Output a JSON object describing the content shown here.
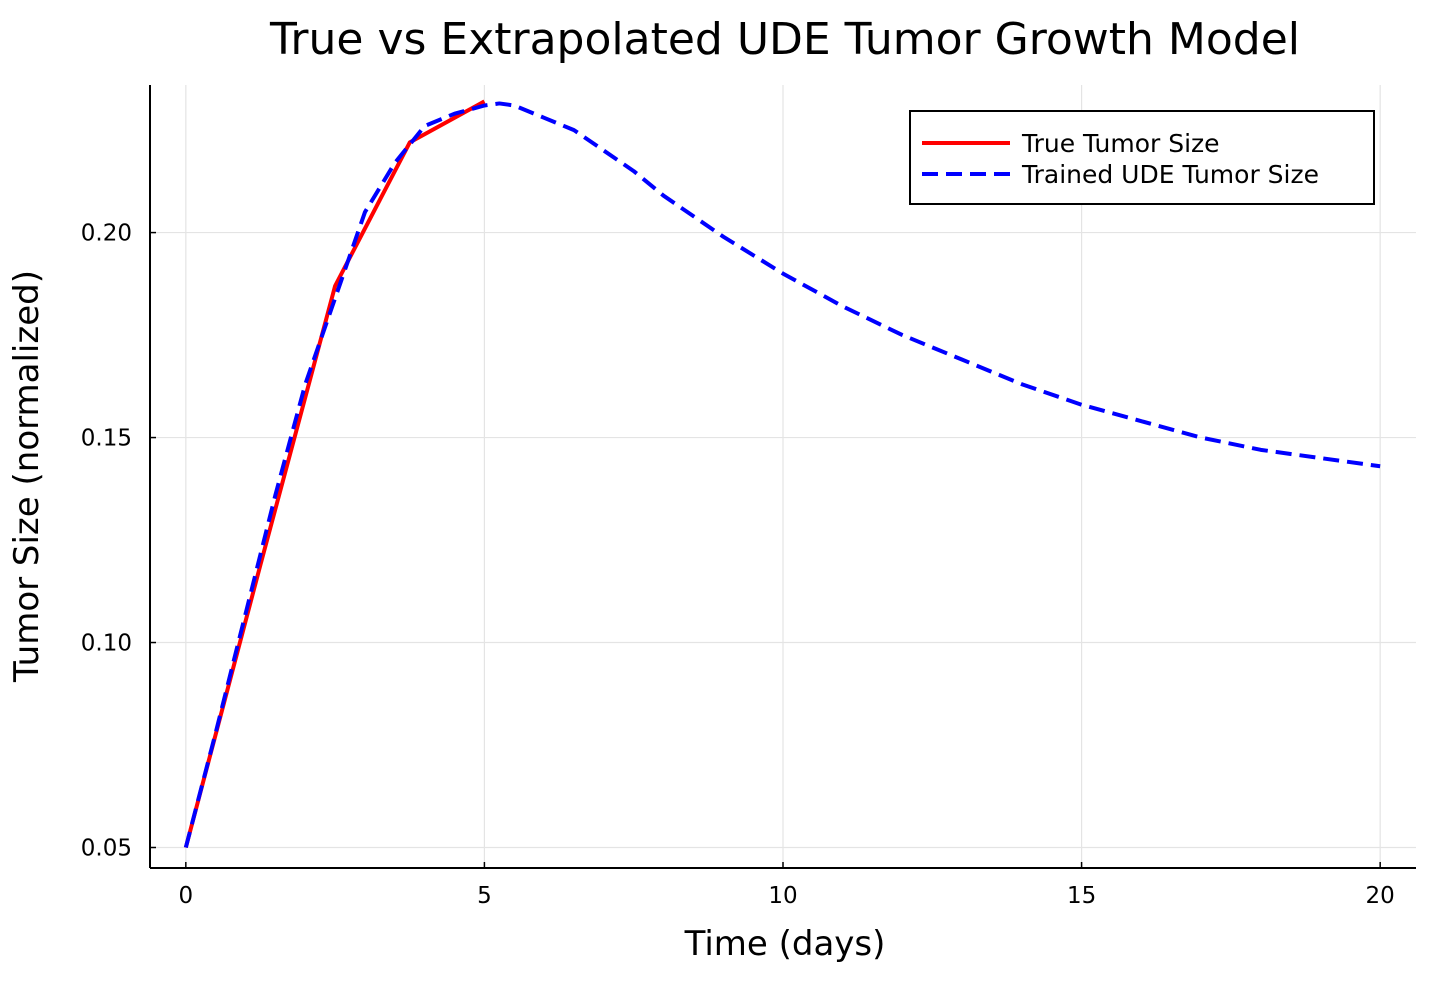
{
  "chart_data": {
    "type": "line",
    "title": "True vs Extrapolated UDE Tumor Growth Model",
    "xlabel": "Time (days)",
    "ylabel": "Tumor Size (normalized)",
    "xlim": [
      -0.6,
      20.6
    ],
    "ylim": [
      0.045,
      0.236
    ],
    "xticks": [
      0,
      5,
      10,
      15,
      20
    ],
    "xtick_labels": [
      "0",
      "5",
      "10",
      "15",
      "20"
    ],
    "yticks": [
      0.05,
      0.1,
      0.15,
      0.2
    ],
    "ytick_labels": [
      "0.05",
      "0.10",
      "0.15",
      "0.20"
    ],
    "grid": true,
    "legend_position": "top-right",
    "series": [
      {
        "name": "True Tumor Size",
        "color": "#ff0000",
        "style": "solid",
        "x": [
          0,
          1.25,
          2.5,
          3.75,
          5.0
        ],
        "y": [
          0.05,
          0.119,
          0.187,
          0.222,
          0.232
        ]
      },
      {
        "name": "Trained UDE Tumor Size",
        "color": "#0000ff",
        "style": "dashed",
        "x": [
          0,
          0.5,
          1.0,
          1.5,
          2.0,
          2.5,
          3.0,
          3.5,
          4.0,
          4.5,
          5.0,
          5.25,
          5.5,
          6.0,
          6.5,
          7.0,
          7.5,
          8.0,
          9.0,
          10.0,
          11.0,
          12.0,
          13.0,
          14.0,
          15.0,
          16.0,
          17.0,
          18.0,
          19.0,
          20.0
        ],
        "y": [
          0.05,
          0.078,
          0.107,
          0.136,
          0.163,
          0.184,
          0.205,
          0.217,
          0.226,
          0.229,
          0.231,
          0.2315,
          0.231,
          0.228,
          0.225,
          0.22,
          0.215,
          0.209,
          0.199,
          0.19,
          0.182,
          0.175,
          0.169,
          0.163,
          0.158,
          0.154,
          0.15,
          0.147,
          0.145,
          0.143
        ]
      }
    ]
  }
}
